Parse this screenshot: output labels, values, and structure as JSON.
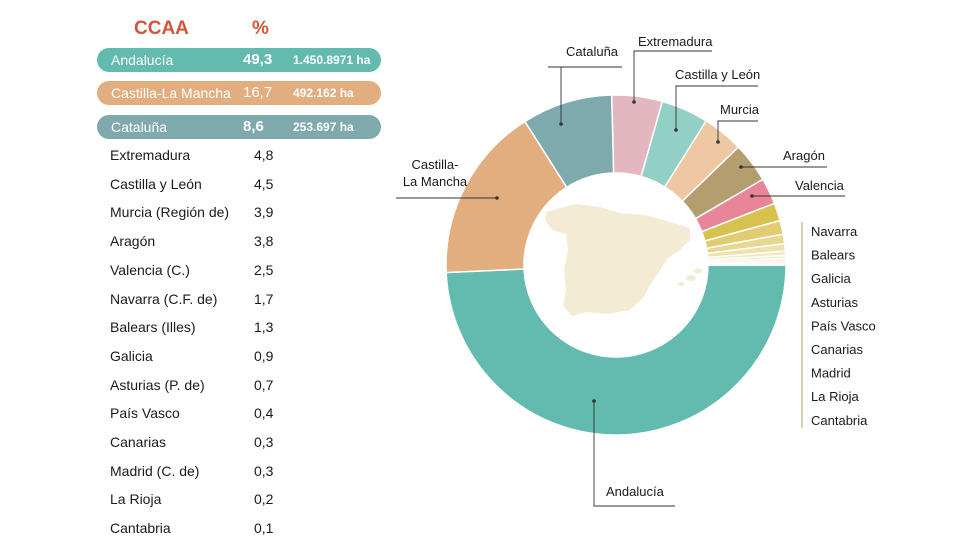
{
  "header": {
    "ccaa": "CCAA",
    "pct": "%"
  },
  "colors": {
    "header": "#d2553a",
    "Andalucía": "#63bbaf",
    "Castilla-La Mancha": "#e2ae7f",
    "Cataluña": "#7ea9ad",
    "Extremadura": "#e3b7bf",
    "Castilla y León": "#92cfc4",
    "Murcia": "#eec8a3",
    "Aragón": "#b49e6f",
    "Valencia": "#e98599",
    "small": [
      "#d8c24f",
      "#e2cc72",
      "#e8d790",
      "#efe1ad",
      "#f2e8c2",
      "#f5ecd0",
      "#f7efd9",
      "#f6cfb4",
      "#f4b89c"
    ],
    "map": "#f3ebd3",
    "line": "#333333",
    "bracket": "#c9b27a"
  },
  "highlights": [
    {
      "name": "Andalucía",
      "pct": "49,3",
      "ha": "1.450.8971 ha"
    },
    {
      "name": "Castilla-La Mancha",
      "pct": "16,7",
      "ha": "492.162 ha"
    },
    {
      "name": "Cataluña",
      "pct": "8,6",
      "ha": "253.697 ha"
    }
  ],
  "rows": [
    {
      "name": "Extremadura",
      "pct": "4,8"
    },
    {
      "name": "Castilla y León",
      "pct": "4,5"
    },
    {
      "name": "Murcia (Región de)",
      "pct": "3,9"
    },
    {
      "name": "Aragón",
      "pct": "3,8"
    },
    {
      "name": "Valencia (C.)",
      "pct": "2,5"
    },
    {
      "name": "Navarra (C.F. de)",
      "pct": "1,7"
    },
    {
      "name": "Balears (Illes)",
      "pct": "1,3"
    },
    {
      "name": "Galicia",
      "pct": "0,9"
    },
    {
      "name": "Asturias (P. de)",
      "pct": "0,7"
    },
    {
      "name": "País Vasco",
      "pct": "0,4"
    },
    {
      "name": "Canarias",
      "pct": "0,3"
    },
    {
      "name": "Madrid (C. de)",
      "pct": "0,3"
    },
    {
      "name": "La Rioja",
      "pct": "0,2"
    },
    {
      "name": "Cantabria",
      "pct": "0,1"
    }
  ],
  "chart_data": {
    "type": "pie",
    "title": "",
    "categories": [
      "Andalucía",
      "Castilla-La Mancha",
      "Cataluña",
      "Extremadura",
      "Castilla y León",
      "Murcia",
      "Aragón",
      "Valencia",
      "Navarra",
      "Balears",
      "Galicia",
      "Asturias",
      "País Vasco",
      "Canarias",
      "Madrid",
      "La Rioja",
      "Cantabria"
    ],
    "values": [
      49.3,
      16.7,
      8.6,
      4.8,
      4.5,
      3.9,
      3.8,
      2.5,
      1.7,
      1.3,
      0.9,
      0.7,
      0.4,
      0.3,
      0.3,
      0.2,
      0.1
    ],
    "labels": {
      "Andalucía": "Andalucía",
      "Castilla-La Mancha": "Castilla-\nLa Mancha",
      "Cataluña": "Cataluña",
      "Extremadura": "Extremadura",
      "Castilla y León": "Castilla y León",
      "Murcia": "Murcia",
      "Aragón": "Aragón",
      "Valencia": "Valencia"
    },
    "small_legend": [
      "Navarra",
      "Balears",
      "Galicia",
      "Asturias",
      "País Vasco",
      "Canarias",
      "Madrid",
      "La Rioja",
      "Cantabria"
    ]
  }
}
